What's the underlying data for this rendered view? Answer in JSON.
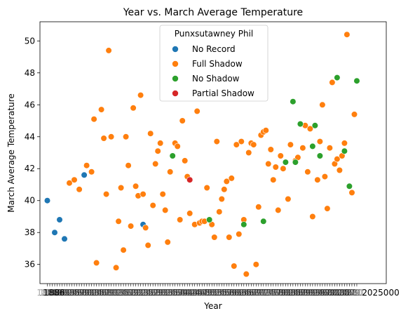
{
  "chart_data": {
    "type": "scatter",
    "title": "Year vs. March Average Temperature",
    "xlabel": "Year",
    "ylabel": "March Average Temperature",
    "ylim": [
      34.8,
      51.2
    ],
    "y_ticks": [
      36,
      38,
      40,
      42,
      44,
      46,
      48,
      50
    ],
    "x_tick_note": "x tick labels overlap into an illegible cluster (one label per year); the right end reads \"2025000\"",
    "x_tick_end_label": "2025000",
    "x_tick_start_label": "1886",
    "xlim": [
      1883,
      2024
    ],
    "grid": false,
    "legend": {
      "title": "Punxsutawney Phil",
      "placement": "top-center",
      "entries": [
        {
          "name": "No Record",
          "color": "#1f77b4"
        },
        {
          "name": "Full Shadow",
          "color": "#ff7f0e"
        },
        {
          "name": "No Shadow",
          "color": "#2ca02c"
        },
        {
          "name": "Partial Shadow",
          "color": "#d62728"
        }
      ]
    },
    "series": [
      {
        "name": "No Record",
        "color": "#1f77b4",
        "points": [
          [
            1886,
            40.0
          ],
          [
            1889,
            38.0
          ],
          [
            1891,
            38.8
          ],
          [
            1893,
            37.6
          ],
          [
            1901,
            41.6
          ],
          [
            1925,
            38.5
          ]
        ]
      },
      {
        "name": "Full Shadow",
        "color": "#ff7f0e",
        "points": [
          [
            1895,
            41.1
          ],
          [
            1897,
            41.3
          ],
          [
            1899,
            40.7
          ],
          [
            1902,
            42.2
          ],
          [
            1904,
            41.8
          ],
          [
            1905,
            45.1
          ],
          [
            1906,
            36.1
          ],
          [
            1908,
            45.7
          ],
          [
            1909,
            43.9
          ],
          [
            1910,
            40.4
          ],
          [
            1911,
            49.4
          ],
          [
            1912,
            44.0
          ],
          [
            1914,
            35.8
          ],
          [
            1915,
            38.7
          ],
          [
            1916,
            40.8
          ],
          [
            1917,
            36.9
          ],
          [
            1918,
            44.0
          ],
          [
            1919,
            42.2
          ],
          [
            1920,
            38.4
          ],
          [
            1921,
            45.8
          ],
          [
            1922,
            40.9
          ],
          [
            1923,
            40.3
          ],
          [
            1924,
            46.6
          ],
          [
            1925,
            40.4
          ],
          [
            1926,
            38.3
          ],
          [
            1927,
            37.2
          ],
          [
            1928,
            44.2
          ],
          [
            1929,
            39.7
          ],
          [
            1930,
            42.3
          ],
          [
            1931,
            43.1
          ],
          [
            1932,
            43.6
          ],
          [
            1933,
            40.4
          ],
          [
            1934,
            39.4
          ],
          [
            1935,
            37.4
          ],
          [
            1936,
            41.8
          ],
          [
            1938,
            43.6
          ],
          [
            1939,
            43.4
          ],
          [
            1940,
            38.8
          ],
          [
            1941,
            45.0
          ],
          [
            1942,
            42.5
          ],
          [
            1943,
            41.5
          ],
          [
            1944,
            39.2
          ],
          [
            1946,
            38.5
          ],
          [
            1947,
            45.6
          ],
          [
            1948,
            38.6
          ],
          [
            1949,
            38.7
          ],
          [
            1950,
            38.7
          ],
          [
            1951,
            40.8
          ],
          [
            1953,
            38.5
          ],
          [
            1954,
            37.7
          ],
          [
            1955,
            43.7
          ],
          [
            1956,
            39.3
          ],
          [
            1957,
            40.1
          ],
          [
            1958,
            40.7
          ],
          [
            1959,
            41.2
          ],
          [
            1960,
            37.7
          ],
          [
            1961,
            41.4
          ],
          [
            1962,
            35.9
          ],
          [
            1963,
            43.5
          ],
          [
            1964,
            37.9
          ],
          [
            1965,
            43.7
          ],
          [
            1966,
            38.8
          ],
          [
            1967,
            35.4
          ],
          [
            1968,
            43.0
          ],
          [
            1969,
            43.6
          ],
          [
            1970,
            43.5
          ],
          [
            1971,
            36.0
          ],
          [
            1972,
            39.6
          ],
          [
            1973,
            44.1
          ],
          [
            1974,
            44.3
          ],
          [
            1975,
            44.4
          ],
          [
            1976,
            42.3
          ],
          [
            1977,
            43.2
          ],
          [
            1978,
            41.3
          ],
          [
            1979,
            42.1
          ],
          [
            1980,
            39.4
          ],
          [
            1981,
            42.8
          ],
          [
            1982,
            42.0
          ],
          [
            1983,
            42.4
          ],
          [
            1984,
            40.1
          ],
          [
            1985,
            43.5
          ],
          [
            1987,
            42.5
          ],
          [
            1988,
            42.7
          ],
          [
            1990,
            43.3
          ],
          [
            1991,
            44.7
          ],
          [
            1992,
            41.8
          ],
          [
            1993,
            44.5
          ],
          [
            1994,
            39.0
          ],
          [
            1996,
            41.3
          ],
          [
            1997,
            43.7
          ],
          [
            1998,
            46.0
          ],
          [
            1999,
            41.5
          ],
          [
            2000,
            39.5
          ],
          [
            2001,
            43.3
          ],
          [
            2002,
            47.4
          ],
          [
            2003,
            42.3
          ],
          [
            2004,
            42.6
          ],
          [
            2005,
            41.9
          ],
          [
            2006,
            42.8
          ],
          [
            2007,
            43.6
          ],
          [
            2008,
            50.4
          ],
          [
            2010,
            40.5
          ],
          [
            2011,
            45.4
          ]
        ]
      },
      {
        "name": "No Shadow",
        "color": "#2ca02c",
        "points": [
          [
            1937,
            42.8
          ],
          [
            1952,
            38.8
          ],
          [
            1966,
            38.5
          ],
          [
            1974,
            38.7
          ],
          [
            1983,
            42.4
          ],
          [
            1986,
            46.2
          ],
          [
            1987,
            42.4
          ],
          [
            1989,
            44.8
          ],
          [
            1994,
            43.4
          ],
          [
            1995,
            44.7
          ],
          [
            1997,
            42.8
          ],
          [
            2004,
            47.7
          ],
          [
            2007,
            43.1
          ],
          [
            2009,
            40.9
          ],
          [
            2012,
            47.5
          ]
        ]
      },
      {
        "name": "Partial Shadow",
        "color": "#d62728",
        "points": [
          [
            1944,
            41.3
          ]
        ]
      }
    ]
  }
}
